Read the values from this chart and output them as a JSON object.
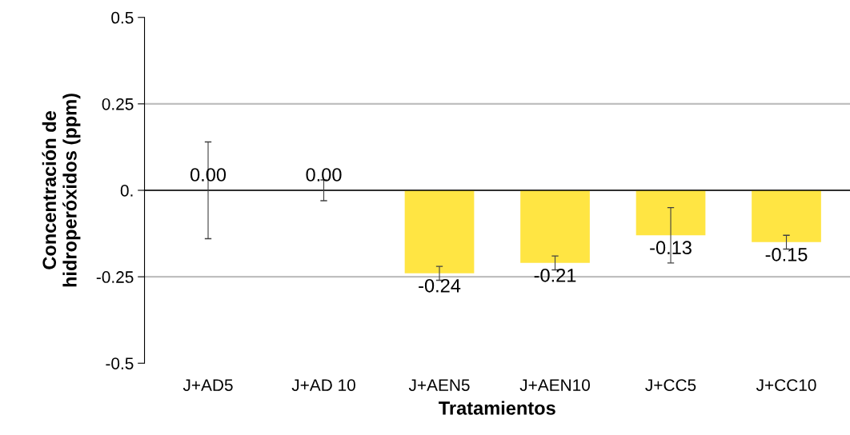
{
  "chart_data": {
    "type": "bar",
    "xlabel": "Tratamientos",
    "ylabel": "Concentración de\nhidroperóxidos (ppm)",
    "categories": [
      "J+AD5",
      "J+AD 10",
      "J+AEN5",
      "J+AEN10",
      "J+CC5",
      "J+CC10"
    ],
    "values": [
      0.0,
      0.0,
      -0.24,
      -0.21,
      -0.13,
      -0.15
    ],
    "errors": [
      0.14,
      0.03,
      0.02,
      0.02,
      0.08,
      0.02
    ],
    "value_labels": [
      "0.00",
      "0.00",
      "-0.24",
      "-0.21",
      "-0.13",
      "-0.15"
    ],
    "color": "#ffe543",
    "ylim": [
      -0.5,
      0.5
    ],
    "yticks": [
      {
        "value": 0.5,
        "label": "0.5"
      },
      0.25,
      {
        "value": 0,
        "label": "0."
      },
      -0.25,
      {
        "value": -0.5,
        "label": "-0.5"
      }
    ],
    "grid": "y",
    "legend": false
  }
}
